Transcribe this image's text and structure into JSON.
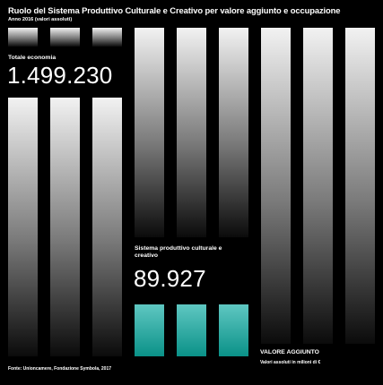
{
  "title": "Ruolo del Sistema Produttivo Culturale e Creativo per valore aggiunto e occupazione",
  "subtitle": "Anno 2016 (valori assoluti)",
  "total_label": "Totale economia",
  "total_value": "1.499.230",
  "spcc_label": "Sistema produttivo culturale e creativo",
  "spcc_value": "89.927",
  "measure_label": "VALORE AGGIUNTO",
  "measure_sub": "Valori assoluti in milioni di €",
  "source": "Fonte: Unioncamere, Fondazione Symbola, 2017",
  "colors": {
    "background": "#000000",
    "bar_light": "#f2f2f2",
    "bar_dark": "#0b0b0b",
    "teal_light": "#5fc7c2",
    "teal_dark": "#0a9188",
    "text": "#ffffff"
  },
  "chart_data": {
    "type": "bar",
    "categories": [
      "Totale economia",
      "Sistema produttivo culturale e creativo"
    ],
    "values": [
      1499230,
      89927
    ],
    "title": "Ruolo del Sistema Produttivo Culturale e Creativo per valore aggiunto e occupazione",
    "subtitle": "Anno 2016 (valori assoluti)",
    "unit": "Valori assoluti in milioni di €",
    "legend": "none",
    "grid": false
  }
}
